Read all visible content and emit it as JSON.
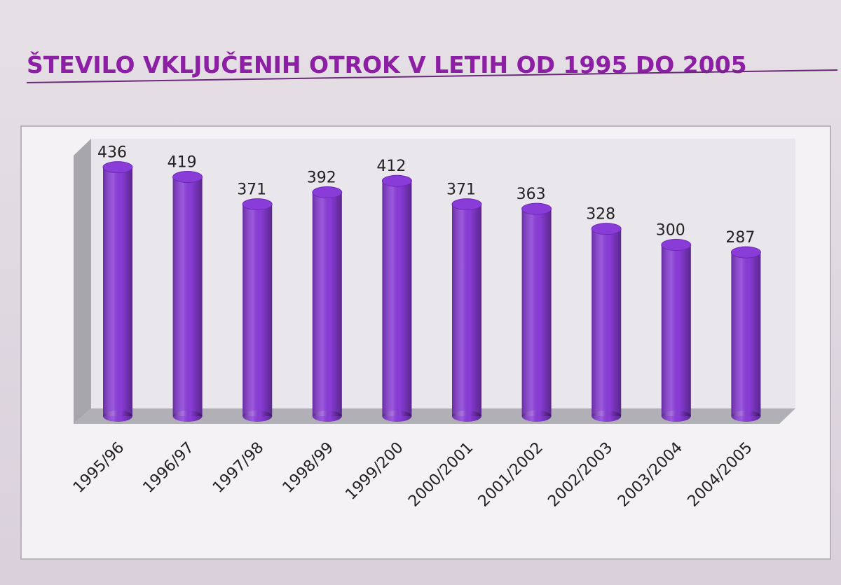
{
  "chart_data": {
    "type": "bar",
    "title": "ŠTEVILO VKLJUČENIH OTROK V LETIH OD 1995 DO 2005",
    "categories": [
      "1995/96",
      "1996/97",
      "1997/98",
      "1998/99",
      "1999/200",
      "2000/2001",
      "2001/2002",
      "2002/2003",
      "2003/2004",
      "2004/2005"
    ],
    "values": [
      436,
      419,
      371,
      392,
      412,
      371,
      363,
      328,
      300,
      287
    ],
    "color": "#8a3cd8"
  }
}
